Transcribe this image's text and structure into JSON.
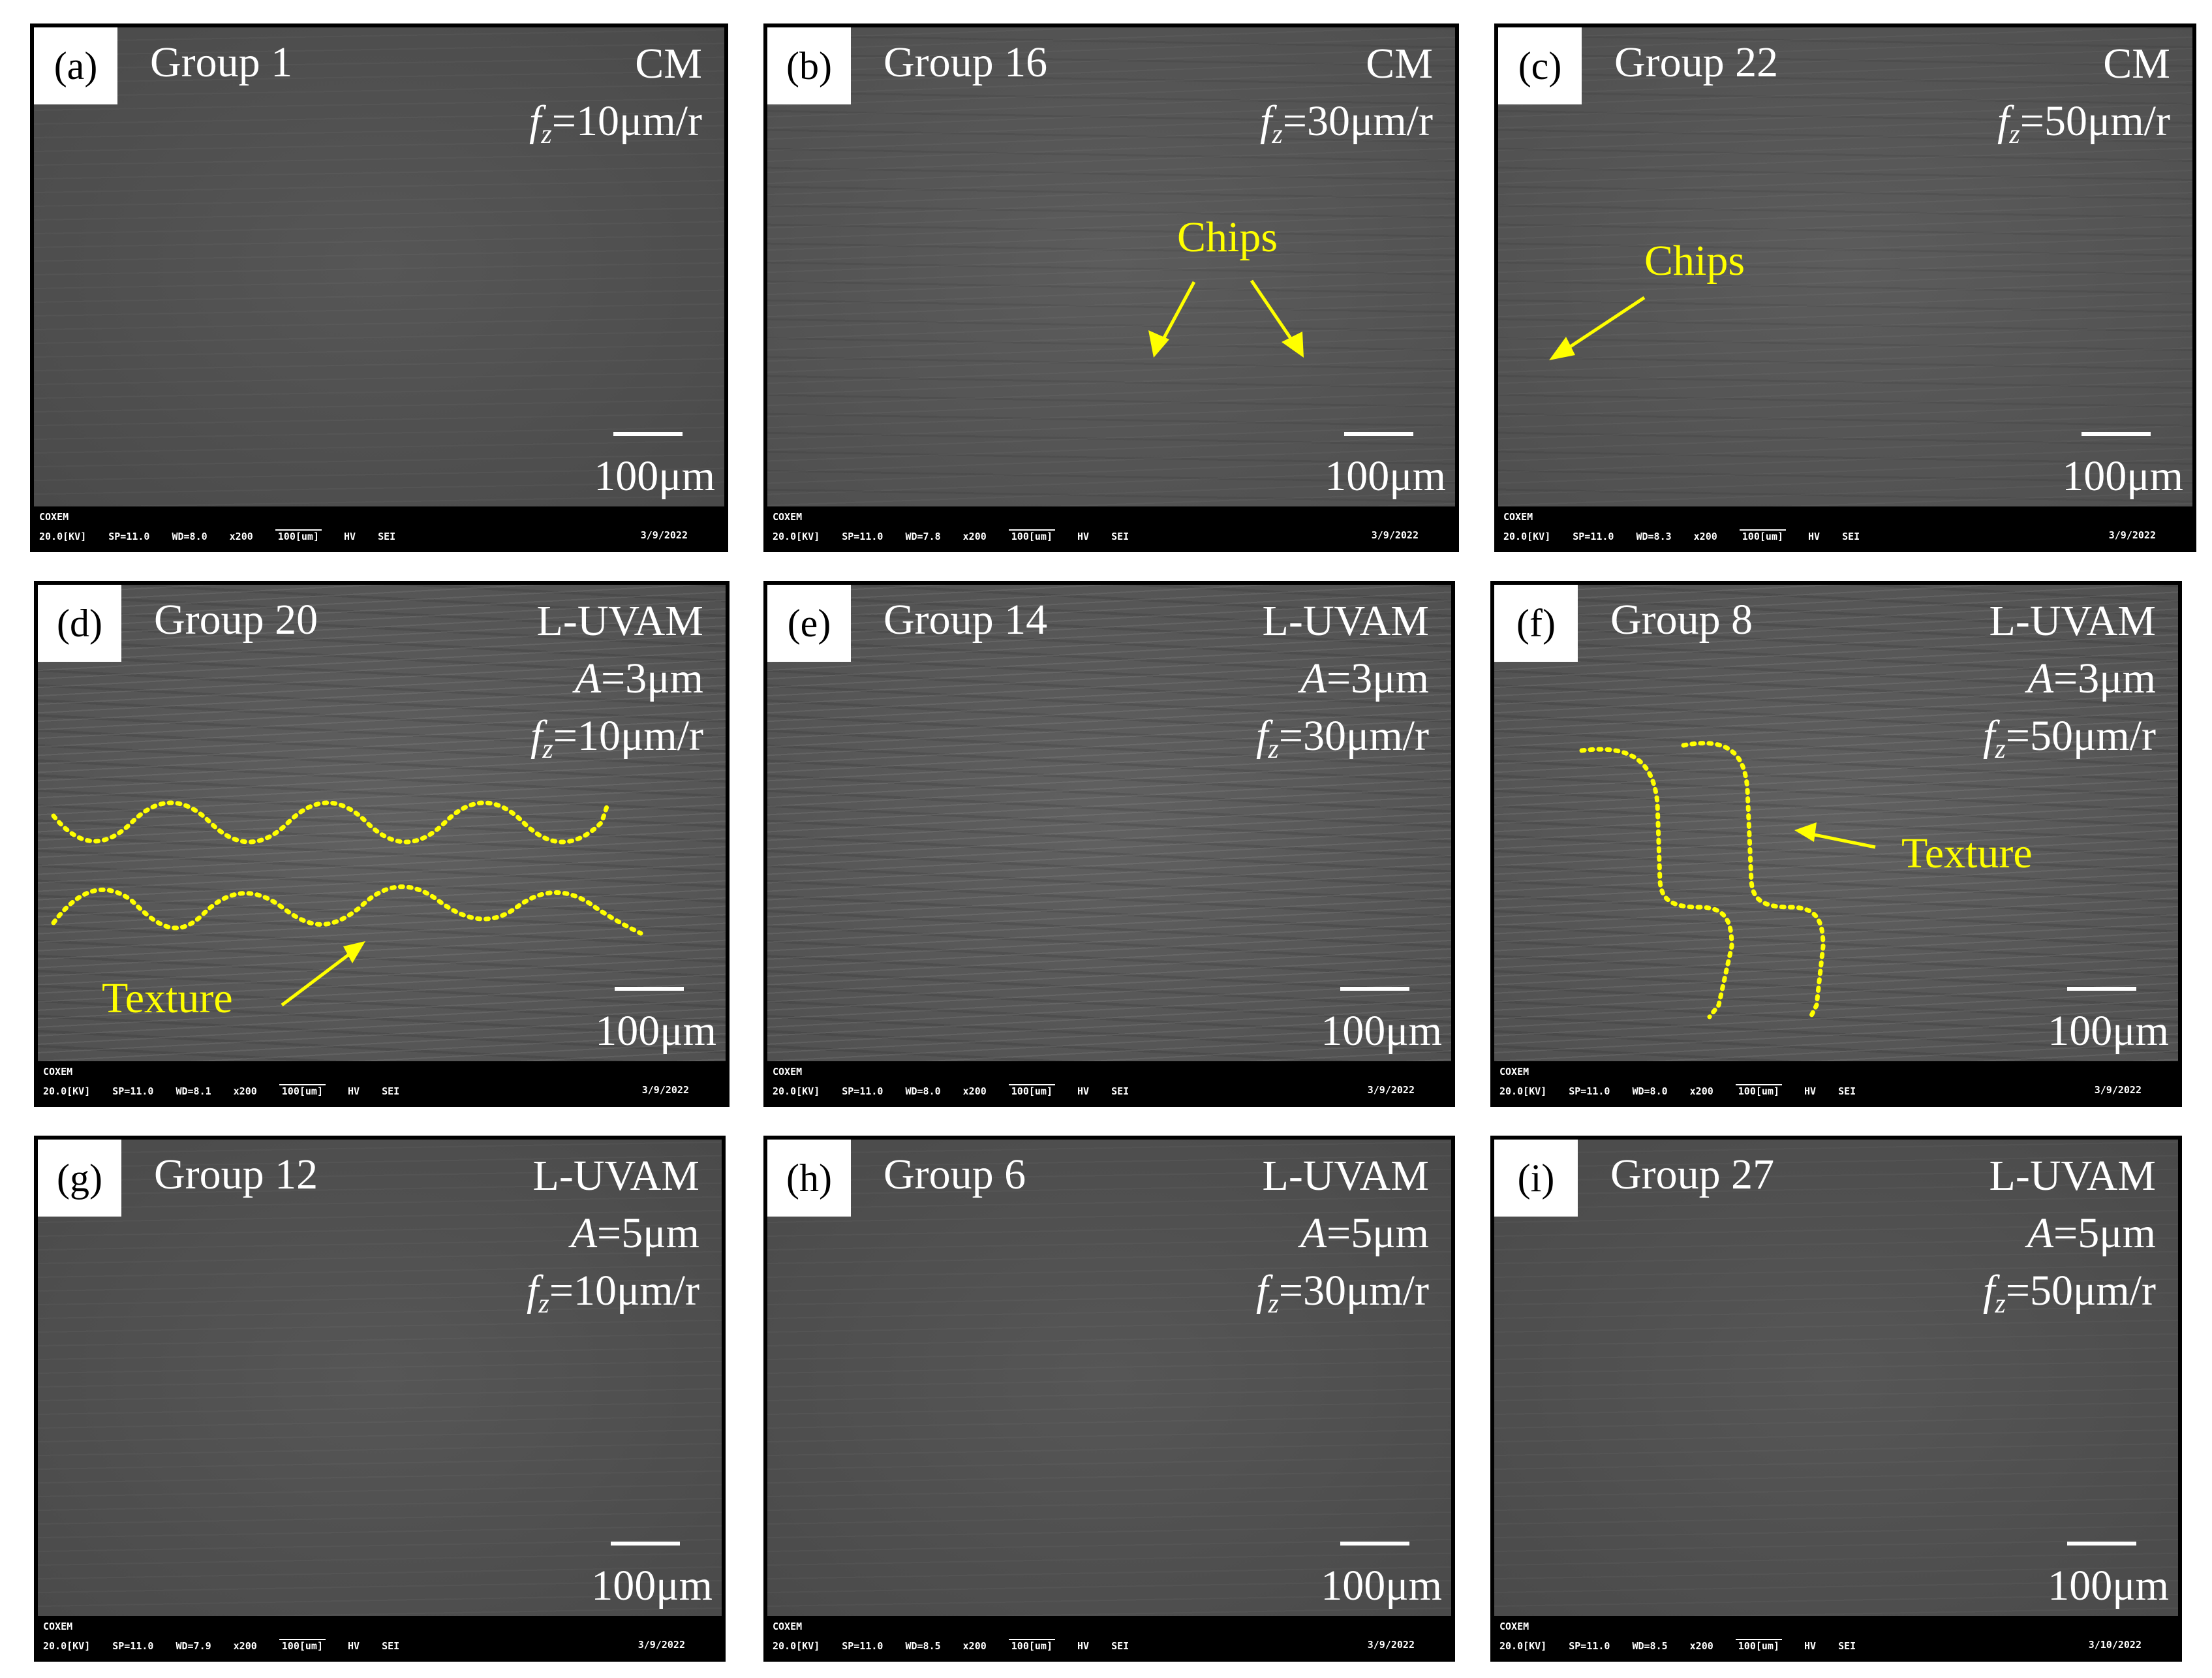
{
  "scale_label": "100μm",
  "colors": {
    "annotation": "#ffff00",
    "sem_gray": "#555555"
  },
  "panels": [
    {
      "letter": "(a)",
      "group": "Group 1",
      "mode": "CM",
      "amplitude": "",
      "feed": "=10μm/r",
      "info": {
        "brand": "COXEM",
        "kv": "20.0[KV]",
        "sp": "SP=11.0",
        "wd": "WD=8.0",
        "mag": "x200",
        "scale": "100[um]",
        "hv": "HV",
        "det": "SEI",
        "date": "3/9/2022"
      }
    },
    {
      "letter": "(b)",
      "group": "Group 16",
      "mode": "CM",
      "amplitude": "",
      "feed": "=30μm/r",
      "annotation": "Chips",
      "info": {
        "brand": "COXEM",
        "kv": "20.0[KV]",
        "sp": "SP=11.0",
        "wd": "WD=7.8",
        "mag": "x200",
        "scale": "100[um]",
        "hv": "HV",
        "det": "SEI",
        "date": "3/9/2022"
      }
    },
    {
      "letter": "(c)",
      "group": "Group 22",
      "mode": "CM",
      "amplitude": "",
      "feed": "=50μm/r",
      "annotation": "Chips",
      "info": {
        "brand": "COXEM",
        "kv": "20.0[KV]",
        "sp": "SP=11.0",
        "wd": "WD=8.3",
        "mag": "x200",
        "scale": "100[um]",
        "hv": "HV",
        "det": "SEI",
        "date": "3/9/2022"
      }
    },
    {
      "letter": "(d)",
      "group": "Group 20",
      "mode": "L-UVAM",
      "amplitude": "=3μm",
      "feed": "=10μm/r",
      "annotation": "Texture",
      "info": {
        "brand": "COXEM",
        "kv": "20.0[KV]",
        "sp": "SP=11.0",
        "wd": "WD=8.1",
        "mag": "x200",
        "scale": "100[um]",
        "hv": "HV",
        "det": "SEI",
        "date": "3/9/2022"
      }
    },
    {
      "letter": "(e)",
      "group": "Group 14",
      "mode": "L-UVAM",
      "amplitude": "=3μm",
      "feed": "=30μm/r",
      "info": {
        "brand": "COXEM",
        "kv": "20.0[KV]",
        "sp": "SP=11.0",
        "wd": "WD=8.0",
        "mag": "x200",
        "scale": "100[um]",
        "hv": "HV",
        "det": "SEI",
        "date": "3/9/2022"
      }
    },
    {
      "letter": "(f)",
      "group": "Group 8",
      "mode": "L-UVAM",
      "amplitude": "=3μm",
      "feed": "=50μm/r",
      "annotation": "Texture",
      "info": {
        "brand": "COXEM",
        "kv": "20.0[KV]",
        "sp": "SP=11.0",
        "wd": "WD=8.0",
        "mag": "x200",
        "scale": "100[um]",
        "hv": "HV",
        "det": "SEI",
        "date": "3/9/2022"
      }
    },
    {
      "letter": "(g)",
      "group": "Group 12",
      "mode": "L-UVAM",
      "amplitude": "=5μm",
      "feed": "=10μm/r",
      "info": {
        "brand": "COXEM",
        "kv": "20.0[KV]",
        "sp": "SP=11.0",
        "wd": "WD=7.9",
        "mag": "x200",
        "scale": "100[um]",
        "hv": "HV",
        "det": "SEI",
        "date": "3/9/2022"
      }
    },
    {
      "letter": "(h)",
      "group": "Group 6",
      "mode": "L-UVAM",
      "amplitude": "=5μm",
      "feed": "=30μm/r",
      "info": {
        "brand": "COXEM",
        "kv": "20.0[KV]",
        "sp": "SP=11.0",
        "wd": "WD=8.5",
        "mag": "x200",
        "scale": "100[um]",
        "hv": "HV",
        "det": "SEI",
        "date": "3/9/2022"
      }
    },
    {
      "letter": "(i)",
      "group": "Group 27",
      "mode": "L-UVAM",
      "amplitude": "=5μm",
      "feed": "=50μm/r",
      "info": {
        "brand": "COXEM",
        "kv": "20.0[KV]",
        "sp": "SP=11.0",
        "wd": "WD=8.5",
        "mag": "x200",
        "scale": "100[um]",
        "hv": "HV",
        "det": "SEI",
        "date": "3/10/2022"
      }
    }
  ]
}
